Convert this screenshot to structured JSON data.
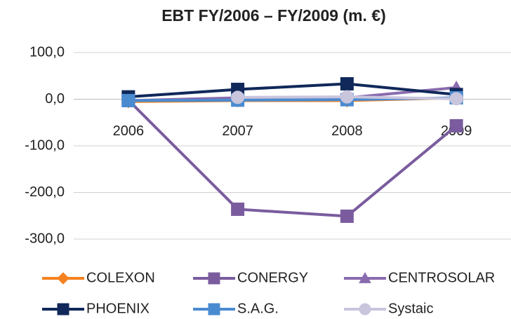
{
  "chart_data": {
    "type": "line",
    "title": "EBT FY/2006 – FY/2009 (m. €)",
    "categories": [
      "2006",
      "2007",
      "2008",
      "2009"
    ],
    "series": [
      {
        "name": "COLEXON",
        "color": "#f58220",
        "marker": "diamond",
        "values": [
          -5,
          -3,
          -3,
          3
        ]
      },
      {
        "name": "CONERGY",
        "color": "#7a5c9e",
        "marker": "square",
        "values": [
          -2,
          -236,
          -251,
          -57
        ]
      },
      {
        "name": "CENTROSOLAR",
        "color": "#8a6cae",
        "marker": "triangle",
        "values": [
          -3,
          3,
          3,
          25
        ]
      },
      {
        "name": "PHOENIX",
        "color": "#10285a",
        "marker": "square",
        "values": [
          5,
          21,
          33,
          10
        ]
      },
      {
        "name": "S.A.G.",
        "color": "#4a8bd0",
        "marker": "square",
        "values": [
          -3,
          -2,
          -1,
          3
        ]
      },
      {
        "name": "Systaic",
        "color": "#c9c5dd",
        "marker": "circle",
        "values": [
          null,
          4,
          5,
          1
        ]
      }
    ],
    "ylim": [
      -300,
      100
    ],
    "yticks": [
      {
        "value": -300,
        "label": "-300,0"
      },
      {
        "value": -200,
        "label": "-200,0"
      },
      {
        "value": -100,
        "label": "-100,0"
      },
      {
        "value": 0,
        "label": "0,0"
      },
      {
        "value": 100,
        "label": "100,0"
      }
    ],
    "grid": true,
    "legend": "bottom"
  }
}
